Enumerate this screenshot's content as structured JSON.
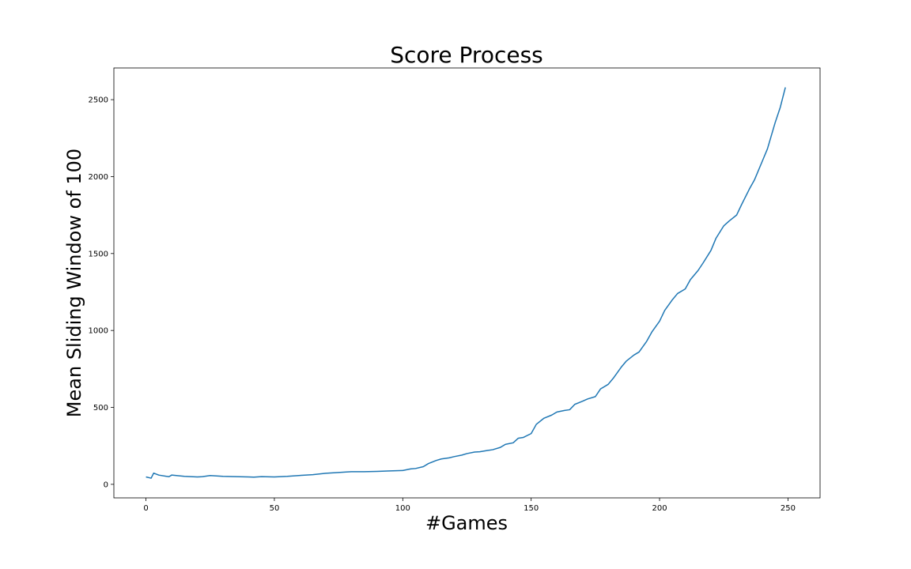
{
  "chart_data": {
    "type": "line",
    "title": "Score Process",
    "xlabel": "#Games",
    "ylabel": "Mean Sliding Window of 100",
    "xlim": [
      -12.5,
      262.5
    ],
    "ylim": [
      -88,
      2706
    ],
    "xticks": [
      0,
      50,
      100,
      150,
      200,
      250
    ],
    "yticks": [
      0,
      500,
      1000,
      1500,
      2000,
      2500
    ],
    "grid": false,
    "series_color": "#1f77b4",
    "series": [
      {
        "x": [
          0,
          2,
          3,
          5,
          8,
          9,
          10,
          13,
          15,
          20,
          22,
          25,
          30,
          35,
          40,
          42,
          45,
          50,
          55,
          60,
          65,
          70,
          75,
          78,
          80,
          85,
          90,
          95,
          100,
          103,
          105,
          108,
          110,
          113,
          115,
          118,
          120,
          123,
          125,
          128,
          130,
          133,
          135,
          138,
          140,
          143,
          145,
          147,
          150,
          152,
          155,
          158,
          160,
          163,
          165,
          167,
          170,
          172,
          175,
          177,
          180,
          182,
          185,
          187,
          190,
          192,
          195,
          197,
          200,
          202,
          205,
          207,
          210,
          212,
          215,
          217,
          220,
          222,
          225,
          227,
          230,
          232,
          235,
          237,
          240,
          242,
          245,
          247,
          249
        ],
        "y": [
          48,
          40,
          73,
          60,
          52,
          50,
          60,
          55,
          52,
          48,
          50,
          57,
          52,
          50,
          48,
          47,
          50,
          48,
          52,
          58,
          63,
          72,
          77,
          80,
          82,
          82,
          84,
          87,
          90,
          100,
          103,
          115,
          135,
          155,
          165,
          172,
          180,
          190,
          200,
          210,
          212,
          220,
          225,
          240,
          260,
          270,
          300,
          305,
          330,
          390,
          430,
          450,
          470,
          480,
          485,
          520,
          540,
          555,
          570,
          620,
          650,
          690,
          760,
          800,
          840,
          860,
          930,
          990,
          1060,
          1130,
          1200,
          1240,
          1270,
          1330,
          1390,
          1440,
          1520,
          1600,
          1680,
          1710,
          1750,
          1820,
          1920,
          1980,
          2100,
          2180,
          2350,
          2450,
          2580
        ]
      }
    ]
  }
}
